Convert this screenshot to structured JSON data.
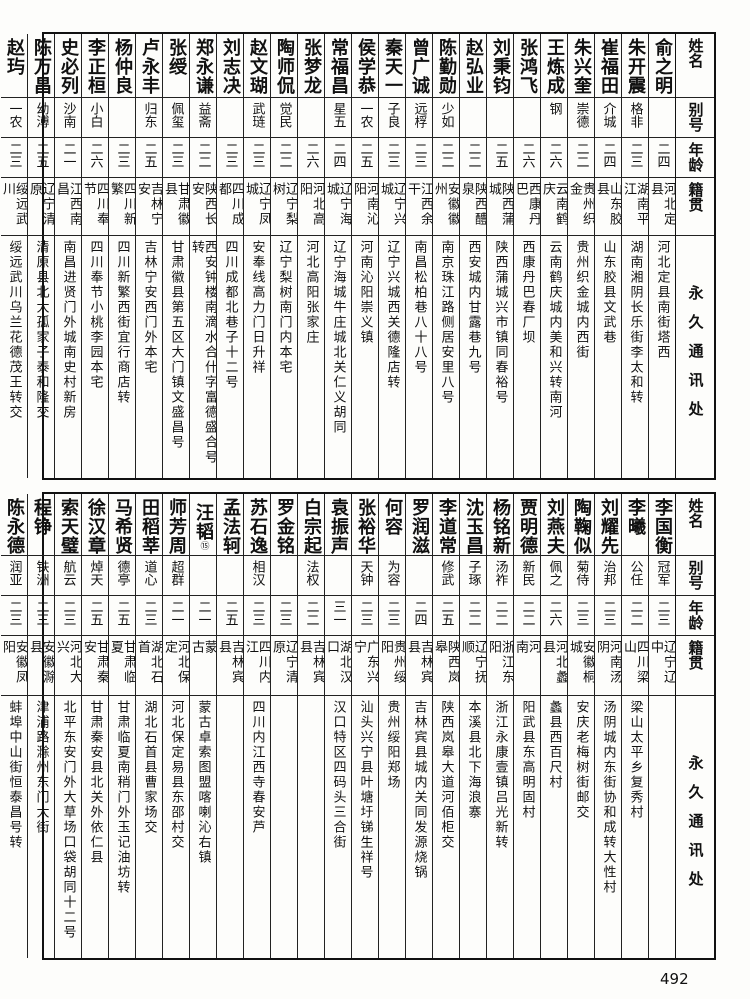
{
  "headers": {
    "name": "姓名",
    "alias": "别号",
    "age": "年龄",
    "native_place": "籍贯",
    "address": "永久通讯处"
  },
  "tables": [
    {
      "rows": [
        {
          "name": "俞之明",
          "alias": "",
          "age": "二四",
          "native_place": "河北定县",
          "address": "河北定县南街塔西"
        },
        {
          "name": "朱开震",
          "alias": "格非",
          "age": "二三",
          "native_place": "湖南平江",
          "address": "湖南湘阴长乐街李太和转"
        },
        {
          "name": "崔福田",
          "alias": "介城",
          "age": "二四",
          "native_place": "山东胶县",
          "address": "山东胶县文武巷"
        },
        {
          "name": "朱兴奎",
          "alias": "崇德",
          "age": "二二",
          "native_place": "贵州织金",
          "address": "贵州织金城内西街"
        },
        {
          "name": "王炼成",
          "alias": "钢",
          "age": "二六",
          "native_place": "云南鹤庆",
          "address": "云南鹤庆城内美和兴转南河"
        },
        {
          "name": "张鸿飞",
          "alias": "",
          "age": "二六",
          "native_place": "西康丹巴",
          "address": "西康丹巴春厂坝"
        },
        {
          "name": "刘秉钧",
          "alias": "",
          "age": "二五",
          "native_place": "陕西蒲城",
          "address": "陕西蒲城兴市镇同春裕号"
        },
        {
          "name": "赵弘业",
          "alias": "",
          "age": "二二",
          "native_place": "陕西醴泉",
          "address": "西安城内甘露巷九号"
        },
        {
          "name": "陈勤勋",
          "alias": "少如",
          "age": "二二",
          "native_place": "安徽徽州",
          "address": "南京珠江路侧居安里八号"
        },
        {
          "name": "曾广诚",
          "alias": "远桴",
          "age": "二三",
          "native_place": "江西余干",
          "address": "南昌松柏巷八十八号"
        },
        {
          "name": "秦天一",
          "alias": "子良",
          "age": "二三",
          "native_place": "辽宁兴城",
          "address": "辽宁兴城西关德隆店转"
        },
        {
          "name": "侯学恭",
          "alias": "一农",
          "age": "二五",
          "native_place": "河南沁阳",
          "address": "河南沁阳崇义镇"
        },
        {
          "name": "常福昌",
          "alias": "星五",
          "age": "二四",
          "native_place": "辽宁海城",
          "address": "辽宁海城牛庄城北关仁义胡同"
        },
        {
          "name": "张梦龙",
          "alias": "",
          "age": "二六",
          "native_place": "河北高阳",
          "address": "河北高阳张家庄"
        },
        {
          "name": "陶师侃",
          "alias": "觉民",
          "age": "二二",
          "native_place": "辽宁梨树",
          "address": "辽宁梨树南门内本宅"
        },
        {
          "name": "赵文瑚",
          "alias": "武琏",
          "age": "二三",
          "native_place": "辽宁凤城",
          "address": "安奉线高力门日升祥"
        },
        {
          "name": "刘志决",
          "alias": "",
          "age": "二三",
          "native_place": "四川成都",
          "address": "四川成都北巷子十二号"
        },
        {
          "name": "郑永谦",
          "alias": "益斋",
          "age": "二二",
          "native_place": "陕西长安",
          "address": "西安钟楼南滴水合什字富德盛合号转"
        },
        {
          "name": "张绶",
          "alias": "佩玺",
          "age": "二三",
          "native_place": "甘肃徽县",
          "address": "甘肃徽县第五区大门镇文盛昌号"
        },
        {
          "name": "卢永丰",
          "alias": "归东",
          "age": "二五",
          "native_place": "吉林宁安",
          "address": "吉林宁安西门外本宅"
        },
        {
          "name": "杨仲良",
          "alias": "",
          "age": "二三",
          "native_place": "四川新繁",
          "address": "四川新繁西街宜行商店转"
        },
        {
          "name": "李正桓",
          "alias": "小白",
          "age": "二六",
          "native_place": "四川奉节",
          "address": "四川奉节小桃李园本宅"
        },
        {
          "name": "史必列",
          "alias": "沙南",
          "age": "二一",
          "native_place": "江西南昌",
          "address": "南昌进贤门外城南史村新房"
        },
        {
          "name": "陈万昌",
          "alias": "幼溥",
          "age": "二五",
          "native_place": "辽宁清原",
          "address": "清原县北大孤家子泰和隆交"
        },
        {
          "name": "赵玙",
          "alias": "一农",
          "age": "二三",
          "native_place": "绥远武川",
          "address": "绥远武川乌兰花德茂王转交"
        }
      ]
    },
    {
      "rows": [
        {
          "name": "李国衡",
          "alias": "冠军",
          "age": "二三",
          "native_place": "辽宁辽中",
          "address": ""
        },
        {
          "name": "李曦",
          "alias": "公任",
          "age": "二二",
          "native_place": "四川梁山",
          "address": "梁山太平乡复秀村"
        },
        {
          "name": "刘耀先",
          "alias": "治邦",
          "age": "二三",
          "native_place": "河南汤阴",
          "address": "汤阴城内东街协和成转大性村"
        },
        {
          "name": "陶鞠似",
          "alias": "菊侍",
          "age": "二三",
          "native_place": "安徽桐城",
          "address": "安庆老梅树街邮交"
        },
        {
          "name": "刘燕夫",
          "alias": "佩之",
          "age": "二六",
          "native_place": "河北蠡县",
          "address": "蠡县西百尺村"
        },
        {
          "name": "贾明德",
          "alias": "新民",
          "age": "二二",
          "native_place": "河　　南",
          "address": "阳武县东高明固村"
        },
        {
          "name": "杨铭新",
          "alias": "汤祚",
          "age": "二二",
          "native_place": "浙江东阳",
          "address": "浙江永康壹镇吕光新转"
        },
        {
          "name": "沈玉昌",
          "alias": "子琢",
          "age": "二二",
          "native_place": "辽宁抚顺",
          "address": "本溪县北下海浪寨"
        },
        {
          "name": "李道常",
          "alias": "修武",
          "age": "二五",
          "native_place": "陕西岚皋",
          "address": "陕西岚皋大道河佰柜交"
        },
        {
          "name": "罗润滋",
          "alias": "",
          "age": "二四",
          "native_place": "吉林宾县",
          "address": "吉林宾县城内关同发源烧锅"
        },
        {
          "name": "何容",
          "alias": "为容",
          "age": "二三",
          "native_place": "贵州绥阳",
          "address": "贵州绥阳郑场"
        },
        {
          "name": "张裕华",
          "alias": "天钟",
          "age": "二三",
          "native_place": "广东兴宁",
          "address": "汕头兴宁县叶塘圩锑生祥号"
        },
        {
          "name": "袁振声",
          "alias": "",
          "age": "三一",
          "native_place": "湖北汉口",
          "address": "汉口特区四码头三合街"
        },
        {
          "name": "白宗起",
          "alias": "法权",
          "age": "二二",
          "native_place": "吉林宾县",
          "address": ""
        },
        {
          "name": "罗金铭",
          "alias": "",
          "age": "二三",
          "native_place": "辽宁清原",
          "address": ""
        },
        {
          "name": "苏石逸",
          "alias": "相汉",
          "age": "二三",
          "native_place": "四川内江",
          "address": "四川内江西寺春安芦"
        },
        {
          "name": "孟法轲",
          "alias": "",
          "age": "二五",
          "native_place": "吉林宾县",
          "address": ""
        },
        {
          "name": "汪韬",
          "mark": "⑮",
          "alias": "",
          "age": "二一",
          "native_place": "蒙　　古",
          "address": "蒙古卓索图盟喀喇沁右镇"
        },
        {
          "name": "师芳周",
          "alias": "超群",
          "age": "二一",
          "native_place": "河北保定",
          "address": "河北保定易县东邵村交"
        },
        {
          "name": "田稻莘",
          "alias": "道心",
          "age": "二三",
          "native_place": "湖北石首",
          "address": "湖北石首县曹家场交"
        },
        {
          "name": "马希贤",
          "alias": "德亭",
          "age": "二五",
          "native_place": "甘肃临夏",
          "address": "甘肃临夏南稍门外玉记油坊转"
        },
        {
          "name": "徐汉章",
          "alias": "焯天",
          "age": "二五",
          "native_place": "甘肃秦安",
          "address": "甘肃秦安县北关外依仁县"
        },
        {
          "name": "索天璧",
          "alias": "航云",
          "age": "二三",
          "native_place": "河北大兴",
          "address": "北平东安门外大草场口袋胡同十二号"
        },
        {
          "name": "程铮",
          "alias": "铁洲",
          "age": "二三",
          "native_place": "安徽滁县",
          "address": "津浦路滁州东门大街"
        },
        {
          "name": "陈永德",
          "alias": "润亚",
          "age": "二三",
          "native_place": "安徽凤阳",
          "address": "蚌埠中山街恒泰昌号转"
        }
      ]
    }
  ],
  "page_number": "492"
}
